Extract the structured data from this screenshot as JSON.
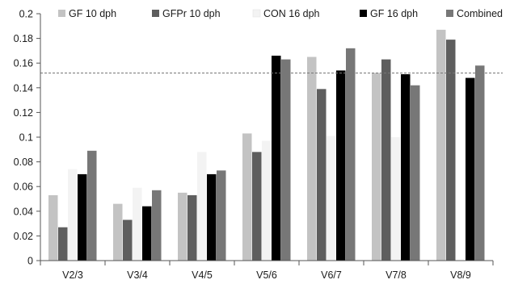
{
  "chart_data": {
    "type": "bar",
    "title": "",
    "xlabel": "",
    "ylabel": "",
    "categories": [
      "V2/3",
      "V3/4",
      "V4/5",
      "V5/6",
      "V6/7",
      "V7/8",
      "V8/9"
    ],
    "series": [
      {
        "name": "GF 10 dph",
        "color": "#c3c3c3",
        "values": [
          0.053,
          0.046,
          0.055,
          0.103,
          0.165,
          0.152,
          0.187
        ]
      },
      {
        "name": "GFPr 10 dph",
        "color": "#5e5e5e",
        "values": [
          0.027,
          0.033,
          0.053,
          0.088,
          0.139,
          0.163,
          0.179
        ]
      },
      {
        "name": "CON 16 dph",
        "color": "#f3f3f3",
        "values": [
          0.074,
          0.059,
          0.088,
          0.097,
          0.101,
          0.1,
          0.0
        ]
      },
      {
        "name": "GF 16 dph",
        "color": "#000000",
        "values": [
          0.07,
          0.044,
          0.07,
          0.166,
          0.154,
          0.151,
          0.148
        ]
      },
      {
        "name": "Combined",
        "color": "#777777",
        "values": [
          0.089,
          0.057,
          0.073,
          0.163,
          0.172,
          0.142,
          0.158
        ]
      }
    ],
    "ylim": [
      0,
      0.2
    ],
    "yticks": [
      "0",
      "0.02",
      "0.04",
      "0.06",
      "0.08",
      "0.1",
      "0.12",
      "0.14",
      "0.16",
      "0.18",
      "0.2"
    ],
    "reference_line": {
      "value": 0.152,
      "style": "dashed"
    },
    "legend": "top",
    "grid": false
  }
}
